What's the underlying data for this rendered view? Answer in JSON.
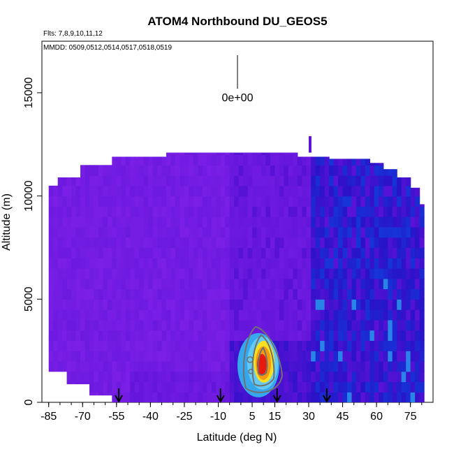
{
  "chart_data": {
    "type": "heatmap",
    "title": "ATOM4 Northbound DU_GEOS5",
    "annotations": {
      "flights": "Flts: 7,8,9,10,11,12",
      "dates": "MMDD: 0509,0512,0514,0517,0518,0519",
      "scale_label": "0e+00"
    },
    "xlabel": "Latitude (deg N)",
    "ylabel": "Altitude (m)",
    "xlim": [
      -88,
      85
    ],
    "ylim": [
      0,
      17500
    ],
    "x_tick_labels": [
      "-85",
      "-70",
      "-55",
      "-40",
      "-25",
      "-10",
      "5",
      "15",
      "30",
      "45",
      "60",
      "75"
    ],
    "x_ticks": [
      -85,
      -70,
      -55,
      -40,
      -25,
      -10,
      5,
      15,
      30,
      45,
      60,
      75
    ],
    "y_ticks": [
      0,
      5000,
      10000,
      15000
    ],
    "y_tick_labels": [
      "0",
      "5000",
      "10000",
      "15000"
    ],
    "arrows_lat": [
      -54,
      -9,
      16,
      38
    ],
    "grid": false,
    "colors": {
      "background_high_lat": "#7b1fe6",
      "mid": "#5a12d6",
      "low": "#2a12c8",
      "blue": "#1535d8",
      "cyan": "#35b8f0",
      "peak_red": "#e81a10",
      "peak_orange": "#f59a10",
      "peak_yellow": "#f8e020",
      "contour": "#707070"
    },
    "hotspot": {
      "lat_range": [
        0,
        18
      ],
      "alt_range": [
        0,
        3500
      ],
      "peak_lat": 9,
      "peak_alt": 1900
    }
  }
}
